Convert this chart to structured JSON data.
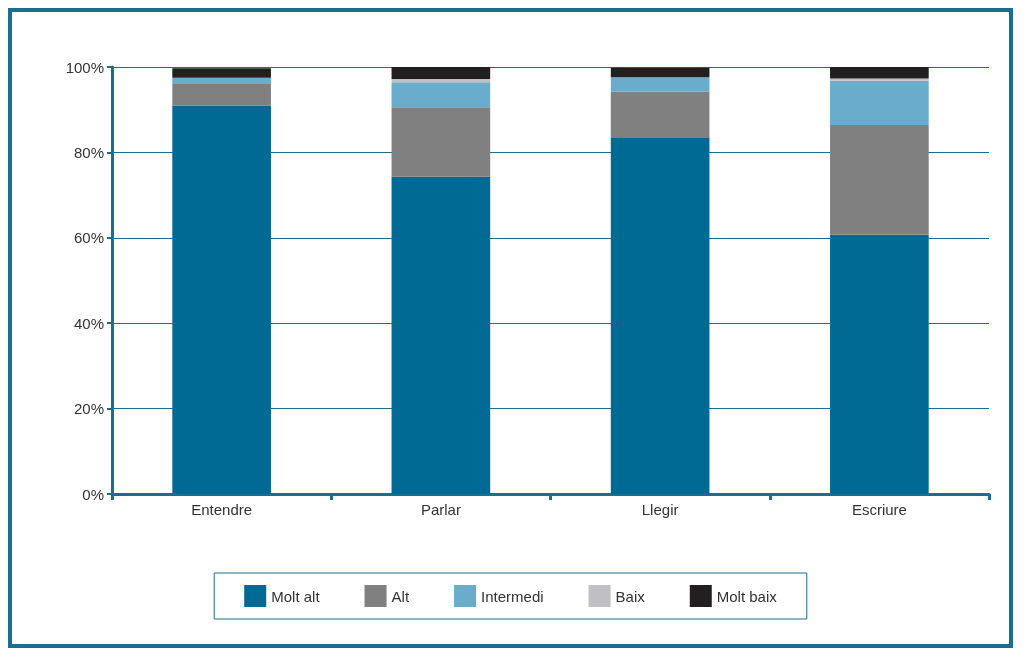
{
  "chart_data": {
    "type": "bar",
    "stacked": true,
    "categories": [
      "Entendre",
      "Parlar",
      "Llegir",
      "Escriure"
    ],
    "series": [
      {
        "name": "Molt alt",
        "color": "#006a94",
        "values": [
          91,
          74.3,
          83.4,
          60.7
        ]
      },
      {
        "name": "Alt",
        "color": "#808080",
        "values": [
          5,
          16.3,
          10.8,
          25.7
        ]
      },
      {
        "name": "Intermedi",
        "color": "#6aaccc",
        "values": [
          1.5,
          5.8,
          3.4,
          10.4
        ]
      },
      {
        "name": "Baix",
        "color": "#c0c0c4",
        "values": [
          null,
          0.8,
          null,
          0.5
        ]
      },
      {
        "name": "Molt baix",
        "color": "#231f20",
        "values": [
          2.2,
          2.8,
          2.2,
          2.7
        ]
      }
    ],
    "ylim": [
      0,
      100
    ],
    "yticks": [
      {
        "value": 0,
        "label": "0%"
      },
      {
        "value": 20,
        "label": "20%"
      },
      {
        "value": 40,
        "label": "40%"
      },
      {
        "value": 60,
        "label": "60%"
      },
      {
        "value": 80,
        "label": "80%"
      },
      {
        "value": 100,
        "label": "100%"
      }
    ],
    "grid": "y",
    "legend": "bottom"
  }
}
